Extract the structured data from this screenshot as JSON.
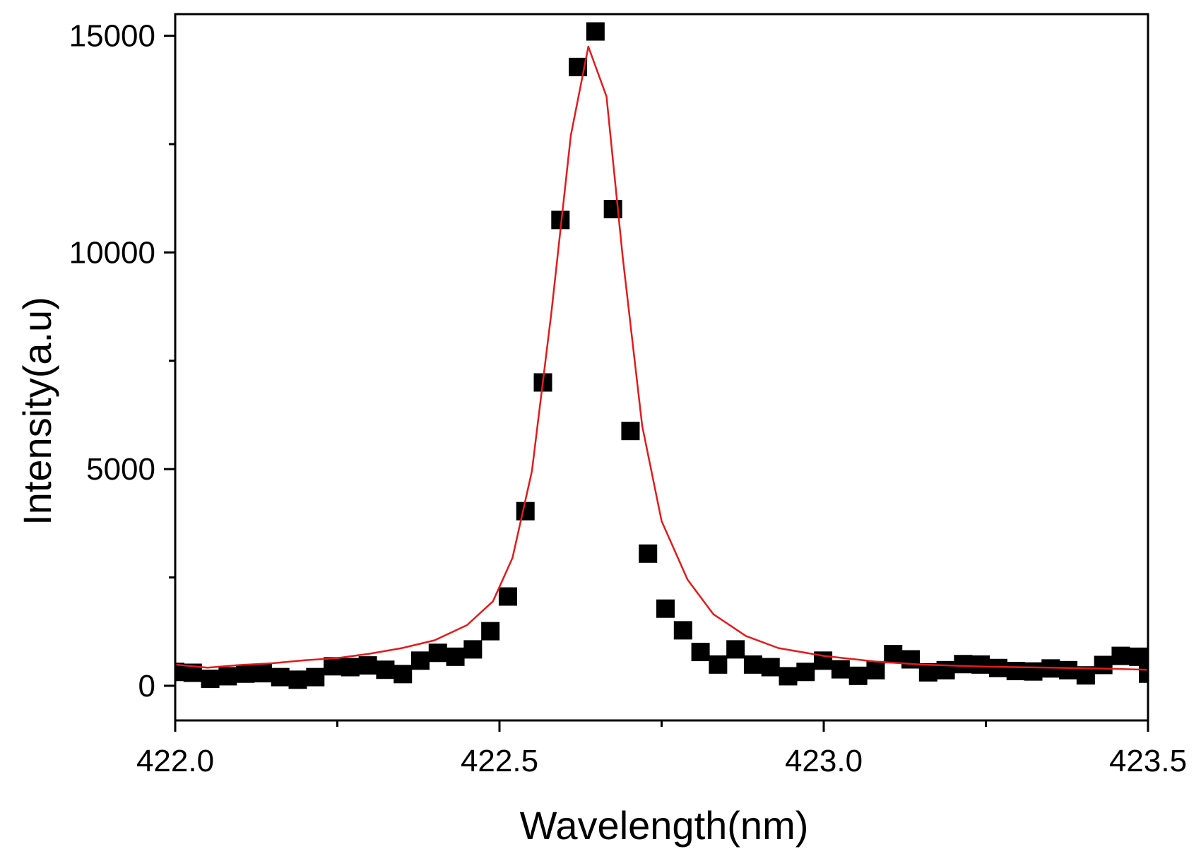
{
  "chart_data": {
    "type": "scatter",
    "title": "",
    "xlabel": "Wavelength(nm)",
    "ylabel": "Intensity(a.u)",
    "xlim": [
      422.0,
      423.5
    ],
    "ylim": [
      -800,
      15500
    ],
    "x_ticks": [
      "422.0",
      "422.5",
      "423.0",
      "423.5"
    ],
    "y_ticks": [
      "0",
      "5000",
      "10000",
      "15000"
    ],
    "x_tick_values": [
      422.0,
      422.5,
      423.0,
      423.5
    ],
    "y_tick_values": [
      0,
      5000,
      10000,
      15000
    ],
    "x_minor_ticks": [
      422.25,
      422.75,
      423.25
    ],
    "y_minor_ticks": [
      2500,
      7500,
      12500
    ],
    "grid": false,
    "series": [
      {
        "kind": "points",
        "marker": "square",
        "color": "#000000",
        "points": [
          [
            422.0,
            320
          ],
          [
            422.027,
            300
          ],
          [
            422.054,
            160
          ],
          [
            422.081,
            220
          ],
          [
            422.108,
            280
          ],
          [
            422.135,
            290
          ],
          [
            422.162,
            200
          ],
          [
            422.189,
            140
          ],
          [
            422.216,
            200
          ],
          [
            422.243,
            450
          ],
          [
            422.27,
            430
          ],
          [
            422.297,
            470
          ],
          [
            422.324,
            370
          ],
          [
            422.351,
            270
          ],
          [
            422.378,
            580
          ],
          [
            422.405,
            760
          ],
          [
            422.432,
            670
          ],
          [
            422.459,
            840
          ],
          [
            422.486,
            1260
          ],
          [
            422.513,
            2060
          ],
          [
            422.54,
            4030
          ],
          [
            422.567,
            7000
          ],
          [
            422.594,
            10750
          ],
          [
            422.621,
            14280
          ],
          [
            422.648,
            15100
          ],
          [
            422.675,
            11000
          ],
          [
            422.702,
            5880
          ],
          [
            422.729,
            3050
          ],
          [
            422.756,
            1780
          ],
          [
            422.783,
            1280
          ],
          [
            422.81,
            780
          ],
          [
            422.837,
            490
          ],
          [
            422.864,
            840
          ],
          [
            422.891,
            490
          ],
          [
            422.918,
            430
          ],
          [
            422.945,
            220
          ],
          [
            422.972,
            320
          ],
          [
            422.999,
            580
          ],
          [
            423.026,
            380
          ],
          [
            423.053,
            230
          ],
          [
            423.08,
            360
          ],
          [
            423.107,
            730
          ],
          [
            423.134,
            610
          ],
          [
            423.161,
            310
          ],
          [
            423.188,
            360
          ],
          [
            423.215,
            500
          ],
          [
            423.242,
            490
          ],
          [
            423.269,
            410
          ],
          [
            423.296,
            340
          ],
          [
            423.323,
            330
          ],
          [
            423.35,
            400
          ],
          [
            423.377,
            360
          ],
          [
            423.404,
            240
          ],
          [
            423.431,
            480
          ],
          [
            423.458,
            690
          ],
          [
            423.485,
            670
          ],
          [
            423.5,
            280
          ]
        ]
      },
      {
        "kind": "line",
        "color": "#e41a1c",
        "points": [
          [
            422.0,
            490
          ],
          [
            422.05,
            420
          ],
          [
            422.1,
            480
          ],
          [
            422.15,
            520
          ],
          [
            422.2,
            590
          ],
          [
            422.25,
            640
          ],
          [
            422.3,
            740
          ],
          [
            422.35,
            870
          ],
          [
            422.4,
            1050
          ],
          [
            422.45,
            1400
          ],
          [
            422.49,
            1950
          ],
          [
            422.52,
            2950
          ],
          [
            422.55,
            4950
          ],
          [
            422.58,
            8600
          ],
          [
            422.61,
            12700
          ],
          [
            422.637,
            14750
          ],
          [
            422.665,
            13600
          ],
          [
            422.69,
            9900
          ],
          [
            422.72,
            6000
          ],
          [
            422.75,
            3800
          ],
          [
            422.79,
            2450
          ],
          [
            422.83,
            1650
          ],
          [
            422.88,
            1150
          ],
          [
            422.93,
            870
          ],
          [
            423.0,
            690
          ],
          [
            423.08,
            560
          ],
          [
            423.15,
            490
          ],
          [
            423.25,
            440
          ],
          [
            423.35,
            420
          ],
          [
            423.45,
            390
          ],
          [
            423.5,
            370
          ]
        ]
      }
    ]
  }
}
